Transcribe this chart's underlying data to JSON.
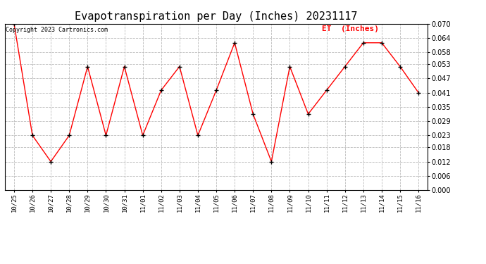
{
  "title": "Evapotranspiration per Day (Inches) 20231117",
  "legend_label": "ET  (Inches)",
  "copyright": "Copyright 2023 Cartronics.com",
  "x_labels": [
    "10/25",
    "10/26",
    "10/27",
    "10/28",
    "10/29",
    "10/30",
    "10/31",
    "11/01",
    "11/02",
    "11/03",
    "11/04",
    "11/05",
    "11/06",
    "11/07",
    "11/08",
    "11/09",
    "11/10",
    "11/11",
    "11/12",
    "11/13",
    "11/14",
    "11/15",
    "11/16"
  ],
  "values": [
    0.07,
    0.023,
    0.012,
    0.023,
    0.052,
    0.023,
    0.052,
    0.023,
    0.042,
    0.052,
    0.023,
    0.042,
    0.062,
    0.032,
    0.012,
    0.052,
    0.032,
    0.042,
    0.052,
    0.062,
    0.062,
    0.052,
    0.041
  ],
  "ylim": [
    0.0,
    0.07
  ],
  "yticks": [
    0.0,
    0.006,
    0.012,
    0.018,
    0.023,
    0.029,
    0.035,
    0.041,
    0.047,
    0.053,
    0.058,
    0.064,
    0.07
  ],
  "line_color": "red",
  "marker": "+",
  "marker_color": "black",
  "grid_color": "#bbbbbb",
  "title_fontsize": 11,
  "legend_color": "red",
  "copyright_color": "black",
  "bg_color": "white"
}
